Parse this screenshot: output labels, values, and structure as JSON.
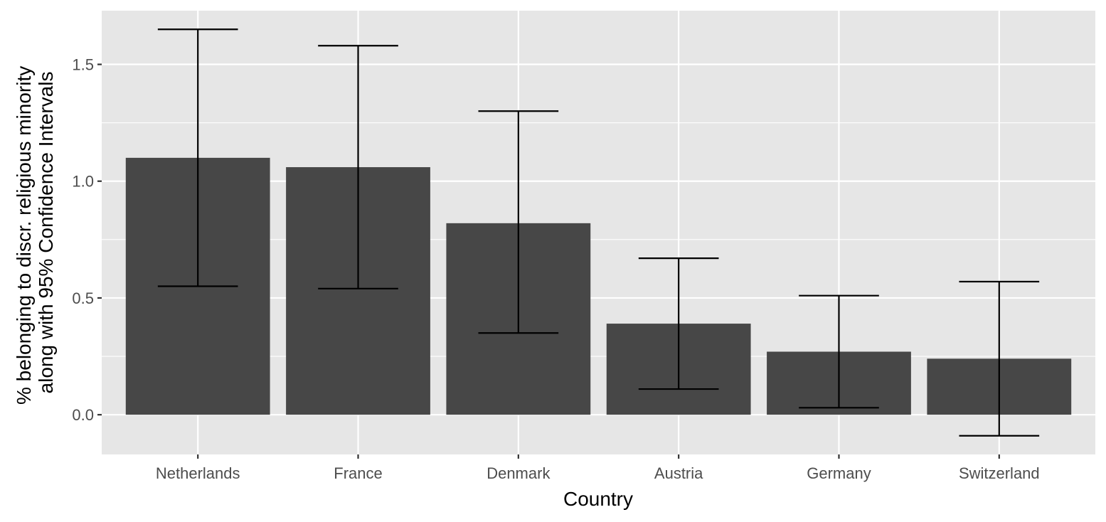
{
  "chart_data": {
    "type": "bar",
    "title": "",
    "xlabel": "Country",
    "ylabel_lines": [
      "% belonging to discr. religious minority",
      "along with 95% Confidence Intervals"
    ],
    "categories": [
      "Netherlands",
      "France",
      "Denmark",
      "Austria",
      "Germany",
      "Switzerland"
    ],
    "values": [
      1.1,
      1.06,
      0.82,
      0.39,
      0.27,
      0.24
    ],
    "ci_lower": [
      0.55,
      0.54,
      0.35,
      0.11,
      0.03,
      -0.09
    ],
    "ci_upper": [
      1.65,
      1.58,
      1.3,
      0.67,
      0.51,
      0.57
    ],
    "ylim": [
      -0.17,
      1.73
    ],
    "y_ticks": [
      0.0,
      0.5,
      1.0,
      1.5
    ],
    "y_tick_labels": [
      "0.0",
      "0.5",
      "1.0",
      "1.5"
    ],
    "grid": true,
    "legend": "none",
    "colors": {
      "bar": "#474747",
      "panel": "#e6e6e6",
      "grid": "#ffffff",
      "error_bar": "#000000"
    }
  }
}
